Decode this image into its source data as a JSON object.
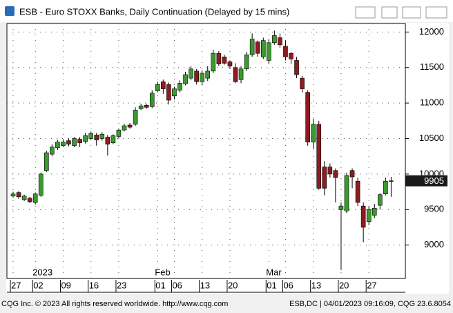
{
  "chart_data": {
    "type": "candlestick",
    "title": "ESB - Euro STOXX Banks, Daily Continuation (Delayed by 15 mins)",
    "categories": [
      "27",
      null,
      null,
      null,
      "02",
      null,
      null,
      null,
      null,
      "09",
      null,
      null,
      null,
      null,
      "16",
      null,
      null,
      null,
      null,
      "23",
      null,
      null,
      null,
      null,
      null,
      null,
      "01",
      null,
      null,
      "06",
      null,
      null,
      null,
      null,
      "13",
      null,
      null,
      null,
      null,
      "20",
      null,
      null,
      null,
      null,
      null,
      null,
      "01",
      null,
      null,
      "06",
      null,
      null,
      null,
      null,
      "13",
      null,
      null,
      null,
      null,
      "20",
      null,
      null,
      null,
      null,
      "27",
      null,
      null,
      null,
      null
    ],
    "period_labels": [
      {
        "label": "2023",
        "index": 4
      },
      {
        "label": "Feb",
        "index": 26
      },
      {
        "label": "Mar",
        "index": 46
      }
    ],
    "open": [
      9690,
      9740,
      9640,
      9660,
      9600,
      9700,
      10050,
      10280,
      10370,
      10400,
      10470,
      10400,
      10490,
      10460,
      10500,
      10550,
      10500,
      10520,
      10440,
      10530,
      10620,
      10690,
      10700,
      10920,
      10970,
      10950,
      11170,
      11300,
      11260,
      11100,
      11180,
      11270,
      11350,
      11450,
      11300,
      11350,
      11450,
      11700,
      11650,
      11580,
      11500,
      11330,
      11480,
      11680,
      11860,
      11650,
      11600,
      11850,
      11920,
      11800,
      11700,
      11600,
      11350,
      11150,
      10450,
      10700,
      10100,
      10100,
      10050,
      9500,
      9480,
      10050,
      9900,
      9550,
      9330,
      9420,
      9560,
      9720,
      9900
    ],
    "high": [
      9750,
      9760,
      9710,
      9680,
      9740,
      10020,
      10330,
      10420,
      10480,
      10490,
      10500,
      10520,
      10520,
      10580,
      10600,
      10580,
      10590,
      10550,
      10560,
      10640,
      10710,
      10720,
      10940,
      10990,
      10990,
      11180,
      11300,
      11330,
      11290,
      11230,
      11320,
      11440,
      11520,
      11480,
      11460,
      11520,
      11750,
      11730,
      11680,
      11600,
      11560,
      11520,
      11720,
      11980,
      11880,
      11920,
      11900,
      12020,
      11980,
      11880,
      11720,
      11650,
      11380,
      11180,
      10780,
      10750,
      10180,
      10150,
      10080,
      9600,
      10020,
      10080,
      9950,
      9600,
      9550,
      9580,
      9730,
      9950,
      9960
    ],
    "low": [
      9670,
      9650,
      9620,
      9590,
      9570,
      9680,
      10030,
      10250,
      10340,
      10380,
      10390,
      10380,
      10380,
      10430,
      10480,
      10400,
      10470,
      10260,
      10420,
      10500,
      10600,
      10640,
      10680,
      10900,
      10920,
      10930,
      11150,
      11130,
      10980,
      11050,
      11150,
      11250,
      11320,
      11260,
      11250,
      11310,
      11420,
      11520,
      11540,
      11480,
      11280,
      11280,
      11450,
      11650,
      11650,
      11620,
      11550,
      11820,
      11780,
      11600,
      11550,
      11350,
      11150,
      10400,
      10350,
      9780,
      9700,
      9950,
      9600,
      8650,
      9450,
      9800,
      9550,
      9040,
      9280,
      9380,
      9500,
      9700,
      9680
    ],
    "close": [
      9720,
      9680,
      9690,
      9610,
      9720,
      10000,
      10300,
      10380,
      10450,
      10450,
      10420,
      10500,
      10440,
      10540,
      10570,
      10480,
      10560,
      10420,
      10540,
      10620,
      10680,
      10660,
      10900,
      10960,
      10940,
      11140,
      11260,
      11200,
      11040,
      11200,
      11280,
      11400,
      11480,
      11300,
      11420,
      11450,
      11700,
      11550,
      11560,
      11520,
      11300,
      11480,
      11680,
      11900,
      11700,
      11880,
      11850,
      11950,
      11820,
      11650,
      11620,
      11400,
      11200,
      10450,
      10700,
      9800,
      9800,
      10000,
      9950,
      9550,
      9980,
      9960,
      9600,
      9250,
      9500,
      9520,
      9710,
      9900,
      9905
    ],
    "up_color": "#3a9a2e",
    "down_color": "#8e1b20",
    "ylim": [
      8530,
      12120
    ],
    "yticks": [
      9000,
      9500,
      10000,
      10500,
      11000,
      11500,
      12000
    ],
    "grid": true
  },
  "status": {
    "left": "CQG Inc. © 2023 All rights reserved worldwide. http://www.cqg.com",
    "right": "ESB,DC | 04/01/2023 09:16:09, CQG 23.6.8054"
  }
}
